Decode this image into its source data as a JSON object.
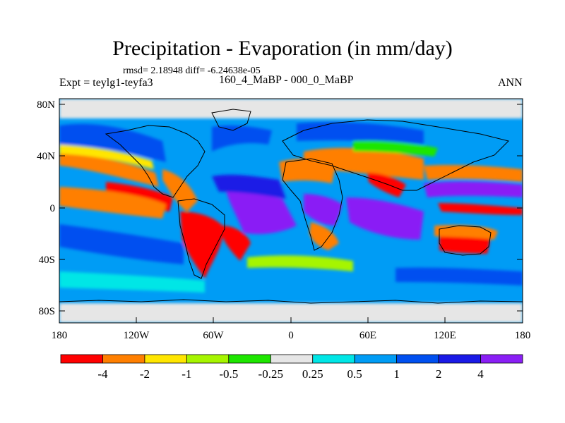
{
  "title": "Precipitation - Evaporation (in mm/day)",
  "stats": "rmsd= 2.18948 diff= -6.24638e-05",
  "experiment": "Expt = teylg1-teyfa3",
  "period": "160_4_MaBP - 000_0_MaBP",
  "season": "ANN",
  "lat_ticks": [
    "80N",
    "40N",
    "0",
    "40S",
    "80S"
  ],
  "lon_ticks": [
    "180",
    "120W",
    "60W",
    "0",
    "60E",
    "120E",
    "180"
  ],
  "colorbar": {
    "levels": [
      "-4",
      "-2",
      "-1",
      "-0.5",
      "-0.25",
      "0.25",
      "0.5",
      "1",
      "2",
      "4"
    ],
    "colors": [
      "#ff0000",
      "#ff7f00",
      "#ffe600",
      "#a6f500",
      "#1ee600",
      "#e6e6e6",
      "#00e6e6",
      "#009cf5",
      "#0050f0",
      "#1a1ae6",
      "#8a1ff5"
    ]
  },
  "colors": {
    "ocean_background": "#009cf5",
    "land_neutral": "#e6e6e6",
    "coastline": "#000000"
  }
}
